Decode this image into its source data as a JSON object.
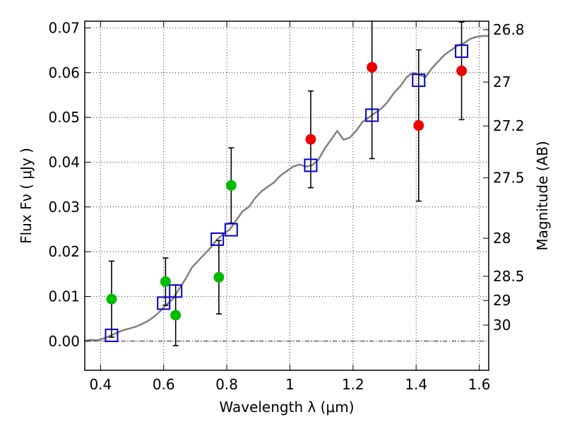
{
  "chart_data": {
    "type": "scatter",
    "title": "",
    "xlabel": "Wavelength  λ (μm)",
    "ylabel": "Flux  Fν  ( μJy )",
    "ylabel_right": "Magnitude (AB)",
    "xlim": [
      0.35,
      1.63
    ],
    "ylim": [
      -0.0065,
      0.0715
    ],
    "grid": true,
    "grid_style": "dotted",
    "xticks": [
      0.4,
      0.6,
      0.8,
      1.0,
      1.2,
      1.4,
      1.6
    ],
    "xtick_labels": [
      "0.4",
      "0.6",
      "0.8",
      "1",
      "1.2",
      "1.4",
      "1.6"
    ],
    "yticks": [
      0.0,
      0.01,
      0.02,
      0.03,
      0.04,
      0.05,
      0.06,
      0.07
    ],
    "ytick_labels": [
      "0.00",
      "0.01",
      "0.02",
      "0.03",
      "0.04",
      "0.05",
      "0.06",
      "0.07"
    ],
    "right_ticks": [
      {
        "label": "26.8",
        "flux": 0.0696
      },
      {
        "label": "27",
        "flux": 0.0579
      },
      {
        "label": "27.2",
        "flux": 0.0481
      },
      {
        "label": "27.5",
        "flux": 0.0365
      },
      {
        "label": "28",
        "flux": 0.023
      },
      {
        "label": "28.5",
        "flux": 0.0145
      },
      {
        "label": "29",
        "flux": 0.0091
      },
      {
        "label": "30",
        "flux": 0.0036
      }
    ],
    "colors": {
      "green": "#00bb00",
      "red": "#ee0000",
      "model_points": "#0000cc",
      "sed_line": "#808080",
      "errorbar": "#000000"
    },
    "series": [
      {
        "marker": "circle",
        "color": "green",
        "points": [
          {
            "x": 0.435,
            "y": 0.0094,
            "err": 0.0085
          },
          {
            "x": 0.606,
            "y": 0.0133,
            "err": 0.0053
          },
          {
            "x": 0.638,
            "y": 0.0058,
            "err": 0.0068
          },
          {
            "x": 0.775,
            "y": 0.0143,
            "err": 0.0082
          },
          {
            "x": 0.814,
            "y": 0.0348,
            "err": 0.0084
          }
        ]
      },
      {
        "marker": "circle",
        "color": "red",
        "points": [
          {
            "x": 1.066,
            "y": 0.0451,
            "err": 0.0108
          },
          {
            "x": 1.26,
            "y": 0.0612,
            "err": 0.0204
          },
          {
            "x": 1.408,
            "y": 0.0482,
            "err": 0.0169
          },
          {
            "x": 1.544,
            "y": 0.0604,
            "err": 0.0109
          }
        ]
      },
      {
        "marker": "square",
        "color": "model_points",
        "points": [
          {
            "x": 0.435,
            "y": 0.0013
          },
          {
            "x": 0.6,
            "y": 0.0085
          },
          {
            "x": 0.638,
            "y": 0.0112
          },
          {
            "x": 0.77,
            "y": 0.0228
          },
          {
            "x": 0.814,
            "y": 0.0249
          },
          {
            "x": 1.066,
            "y": 0.0393
          },
          {
            "x": 1.26,
            "y": 0.0505
          },
          {
            "x": 1.408,
            "y": 0.0583
          },
          {
            "x": 1.544,
            "y": 0.0648
          }
        ]
      },
      {
        "marker": "line",
        "color": "sed_line",
        "points": [
          {
            "x": 0.35,
            "y": 0.0001
          },
          {
            "x": 0.37,
            "y": 0.0003
          },
          {
            "x": 0.39,
            "y": 0.0002
          },
          {
            "x": 0.41,
            "y": 0.0006
          },
          {
            "x": 0.43,
            "y": 0.0012
          },
          {
            "x": 0.45,
            "y": 0.0018
          },
          {
            "x": 0.47,
            "y": 0.0024
          },
          {
            "x": 0.49,
            "y": 0.0028
          },
          {
            "x": 0.51,
            "y": 0.0032
          },
          {
            "x": 0.53,
            "y": 0.0038
          },
          {
            "x": 0.55,
            "y": 0.0045
          },
          {
            "x": 0.57,
            "y": 0.0055
          },
          {
            "x": 0.59,
            "y": 0.0068
          },
          {
            "x": 0.61,
            "y": 0.0082
          },
          {
            "x": 0.63,
            "y": 0.0095
          },
          {
            "x": 0.65,
            "y": 0.0118
          },
          {
            "x": 0.67,
            "y": 0.014
          },
          {
            "x": 0.69,
            "y": 0.0165
          },
          {
            "x": 0.71,
            "y": 0.018
          },
          {
            "x": 0.73,
            "y": 0.0195
          },
          {
            "x": 0.75,
            "y": 0.021
          },
          {
            "x": 0.77,
            "y": 0.0228
          },
          {
            "x": 0.79,
            "y": 0.024
          },
          {
            "x": 0.81,
            "y": 0.025
          },
          {
            "x": 0.83,
            "y": 0.027
          },
          {
            "x": 0.85,
            "y": 0.029
          },
          {
            "x": 0.87,
            "y": 0.03
          },
          {
            "x": 0.89,
            "y": 0.032
          },
          {
            "x": 0.91,
            "y": 0.0335
          },
          {
            "x": 0.93,
            "y": 0.0345
          },
          {
            "x": 0.95,
            "y": 0.0355
          },
          {
            "x": 0.97,
            "y": 0.037
          },
          {
            "x": 0.99,
            "y": 0.038
          },
          {
            "x": 1.01,
            "y": 0.039
          },
          {
            "x": 1.03,
            "y": 0.0395
          },
          {
            "x": 1.05,
            "y": 0.039
          },
          {
            "x": 1.07,
            "y": 0.0393
          },
          {
            "x": 1.09,
            "y": 0.0405
          },
          {
            "x": 1.11,
            "y": 0.043
          },
          {
            "x": 1.13,
            "y": 0.045
          },
          {
            "x": 1.15,
            "y": 0.047
          },
          {
            "x": 1.17,
            "y": 0.045
          },
          {
            "x": 1.19,
            "y": 0.0455
          },
          {
            "x": 1.21,
            "y": 0.047
          },
          {
            "x": 1.23,
            "y": 0.049
          },
          {
            "x": 1.25,
            "y": 0.05
          },
          {
            "x": 1.27,
            "y": 0.051
          },
          {
            "x": 1.29,
            "y": 0.052
          },
          {
            "x": 1.31,
            "y": 0.0535
          },
          {
            "x": 1.33,
            "y": 0.0555
          },
          {
            "x": 1.35,
            "y": 0.057
          },
          {
            "x": 1.37,
            "y": 0.059
          },
          {
            "x": 1.39,
            "y": 0.06
          },
          {
            "x": 1.41,
            "y": 0.0595
          },
          {
            "x": 1.43,
            "y": 0.059
          },
          {
            "x": 1.45,
            "y": 0.061
          },
          {
            "x": 1.47,
            "y": 0.0625
          },
          {
            "x": 1.49,
            "y": 0.064
          },
          {
            "x": 1.51,
            "y": 0.065
          },
          {
            "x": 1.53,
            "y": 0.066
          },
          {
            "x": 1.55,
            "y": 0.0665
          },
          {
            "x": 1.57,
            "y": 0.0675
          },
          {
            "x": 1.59,
            "y": 0.068
          },
          {
            "x": 1.61,
            "y": 0.0682
          },
          {
            "x": 1.63,
            "y": 0.0682
          }
        ]
      }
    ]
  }
}
